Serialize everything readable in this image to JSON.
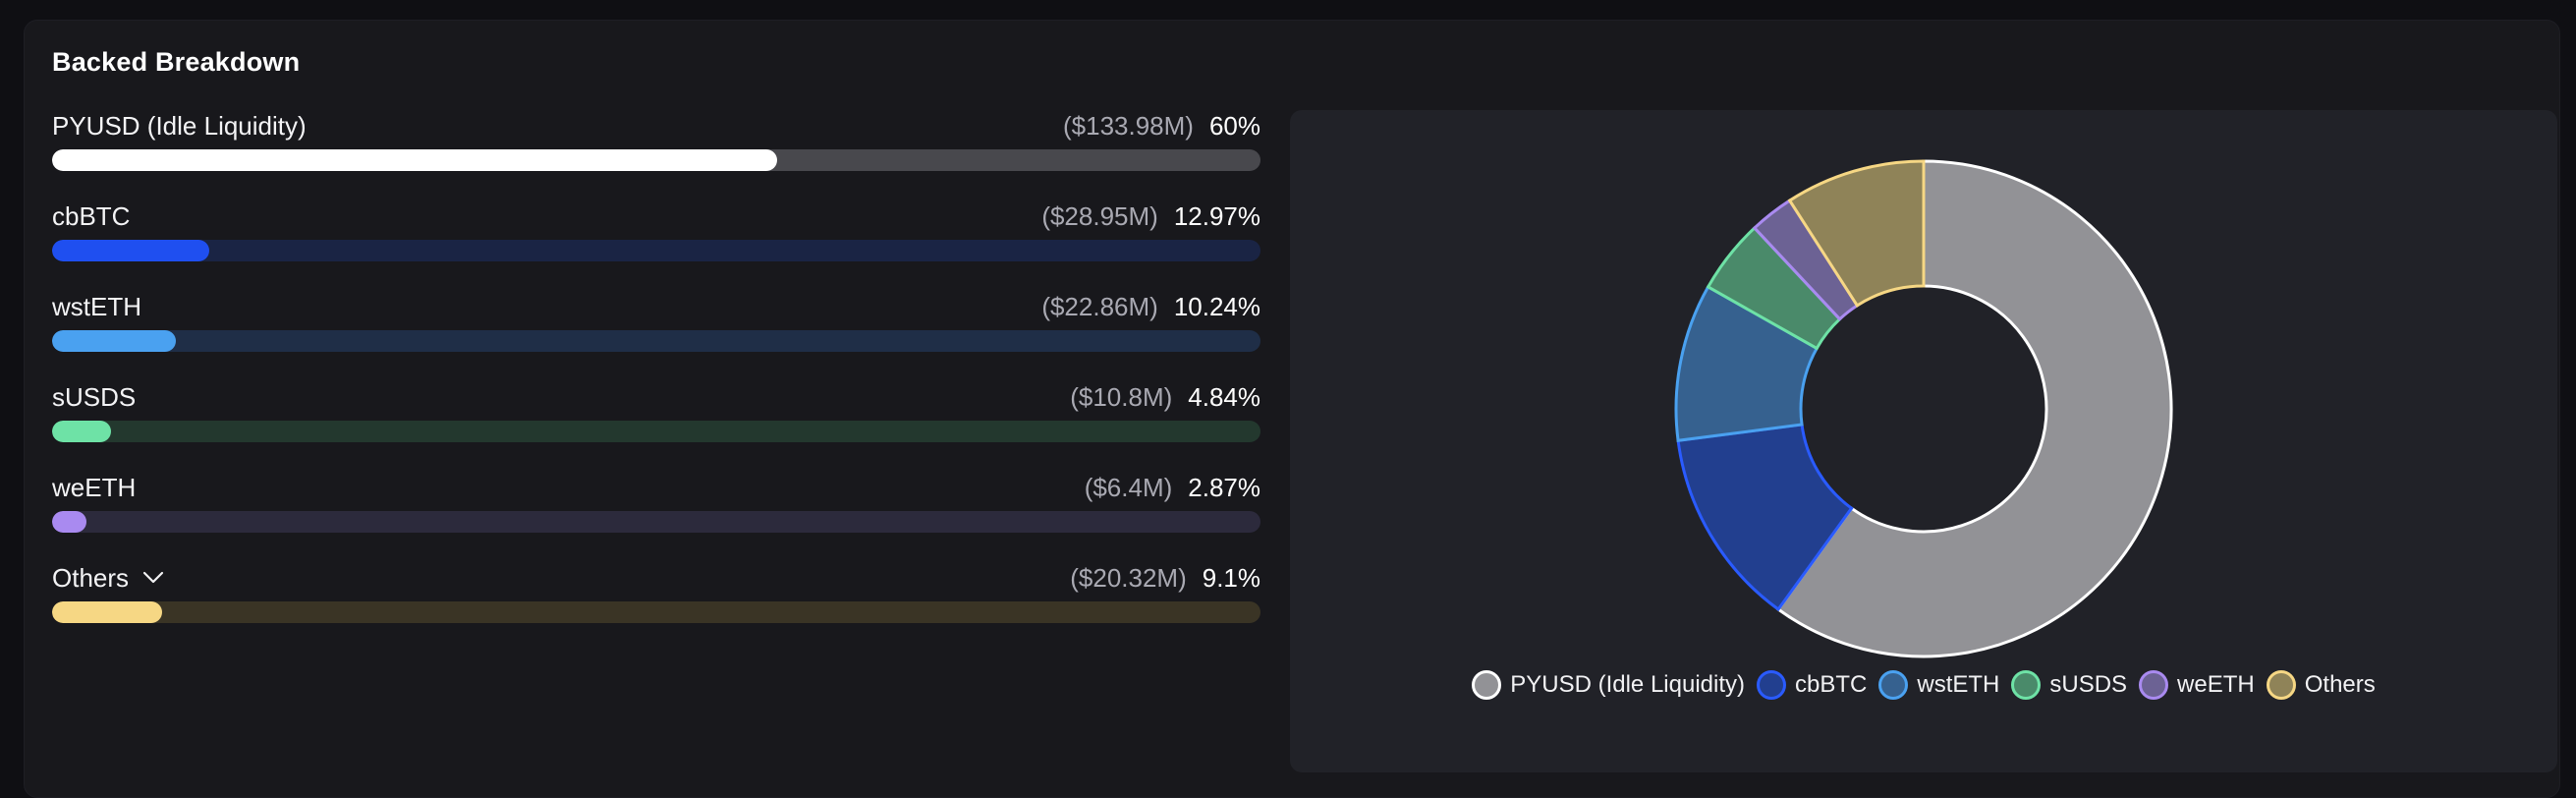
{
  "title": "Backed Breakdown",
  "items": [
    {
      "label": "PYUSD (Idle Liquidity)",
      "amount": "($133.98M)",
      "percent": "60%",
      "value": 60,
      "bar": "#ffffff",
      "track": "#48484d",
      "slice": "#929296",
      "stroke": "#ffffff"
    },
    {
      "label": "cbBTC",
      "amount": "($28.95M)",
      "percent": "12.97%",
      "value": 12.97,
      "bar": "#1f4ff0",
      "track": "#1a2444",
      "slice": "#223f8f",
      "stroke": "#2a5bff"
    },
    {
      "label": "wstETH",
      "amount": "($22.86M)",
      "percent": "10.24%",
      "value": 10.24,
      "bar": "#4aa1f0",
      "track": "#1f2e47",
      "slice": "#36618f",
      "stroke": "#4aa1f0"
    },
    {
      "label": "sUSDS",
      "amount": "($10.8M)",
      "percent": "4.84%",
      "value": 4.84,
      "bar": "#6ee2a6",
      "track": "#23382e",
      "slice": "#4a8a6a",
      "stroke": "#6ee2a6"
    },
    {
      "label": "weETH",
      "amount": "($6.4M)",
      "percent": "2.87%",
      "value": 2.87,
      "bar": "#a98af0",
      "track": "#2c2a3c",
      "slice": "#6c6294",
      "stroke": "#a98af0"
    },
    {
      "label": "Others",
      "amount": "($20.32M)",
      "percent": "9.1%",
      "value": 9.1,
      "bar": "#f6d784",
      "track": "#3a3425",
      "slice": "#8f8358",
      "stroke": "#f6d784",
      "expandable": true
    }
  ],
  "chart_data": {
    "type": "pie",
    "categories": [
      "PYUSD (Idle Liquidity)",
      "cbBTC",
      "wstETH",
      "sUSDS",
      "weETH",
      "Others"
    ],
    "values": [
      60,
      12.97,
      10.24,
      4.84,
      2.87,
      9.1
    ],
    "legend": "bottom"
  }
}
